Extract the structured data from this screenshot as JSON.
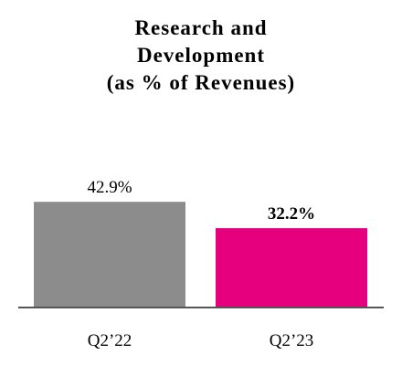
{
  "chart_data": {
    "type": "bar",
    "title_lines": [
      "Research and",
      "Development",
      "(as % of Revenues)"
    ],
    "categories": [
      "Q2’22",
      "Q2’23"
    ],
    "values": [
      42.9,
      32.2
    ],
    "data_labels": [
      "42.9%",
      "32.2%"
    ],
    "data_label_bold": [
      false,
      true
    ],
    "colors": [
      "#8c8c8c",
      "#e6007e"
    ],
    "axis_color": "#555555",
    "ylim": [
      0,
      100
    ],
    "grid": false,
    "legend": "none"
  }
}
